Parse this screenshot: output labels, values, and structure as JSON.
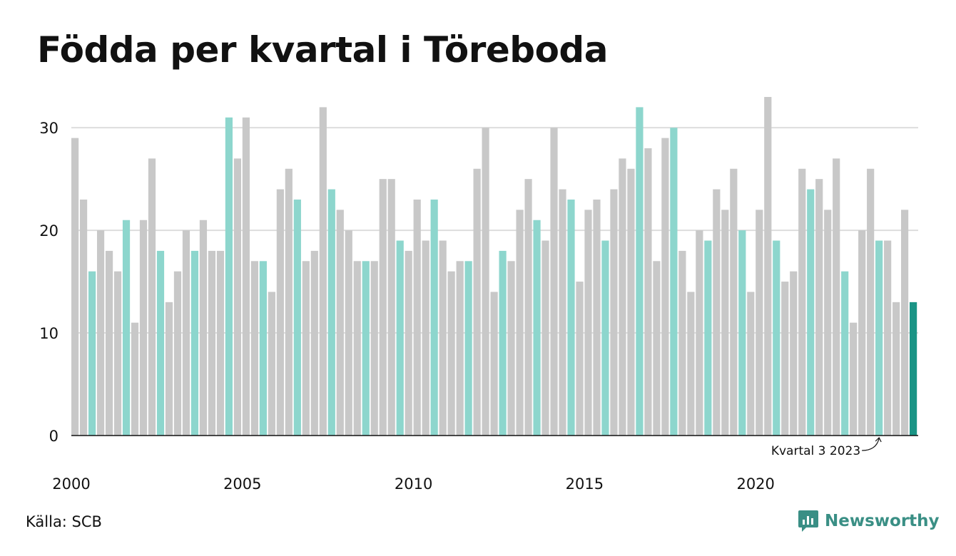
{
  "title": "Födda per kvartal i Töreboda",
  "source": "Källa: SCB",
  "brand": {
    "name": "Newsworthy",
    "icon": "newsworthy-logo-icon"
  },
  "colors": {
    "bar_default": "#c8c8c8",
    "bar_q3": "#8dd6cd",
    "bar_latest": "#1a9485",
    "gridline": "#dddddd",
    "axis": "#111111"
  },
  "chart_data": {
    "type": "bar",
    "title": "Födda per kvartal i Töreboda",
    "xlabel": "",
    "ylabel": "",
    "ylim": [
      0,
      33
    ],
    "yticks": [
      0,
      10,
      20,
      30
    ],
    "xticks": [
      "2000",
      "2005",
      "2010",
      "2015",
      "2020"
    ],
    "grid": true,
    "start": "2000 Q1",
    "values": [
      29,
      23,
      16,
      20,
      18,
      16,
      21,
      11,
      21,
      27,
      18,
      13,
      16,
      20,
      18,
      21,
      18,
      18,
      31,
      27,
      31,
      17,
      17,
      14,
      24,
      26,
      23,
      17,
      18,
      32,
      24,
      22,
      20,
      17,
      17,
      17,
      25,
      25,
      19,
      18,
      23,
      19,
      23,
      19,
      16,
      17,
      17,
      26,
      30,
      14,
      18,
      17,
      22,
      25,
      21,
      19,
      30,
      24,
      23,
      15,
      22,
      23,
      19,
      24,
      27,
      26,
      32,
      28,
      17,
      29,
      30,
      18,
      14,
      20,
      19,
      24,
      22,
      26,
      20,
      14,
      22,
      33,
      19,
      15,
      16,
      26,
      24,
      25,
      22,
      27,
      16,
      11,
      20,
      26,
      19,
      19,
      13,
      22,
      13
    ],
    "highlight_quarter": 3,
    "annotation": "Kvartal 3 2023"
  }
}
